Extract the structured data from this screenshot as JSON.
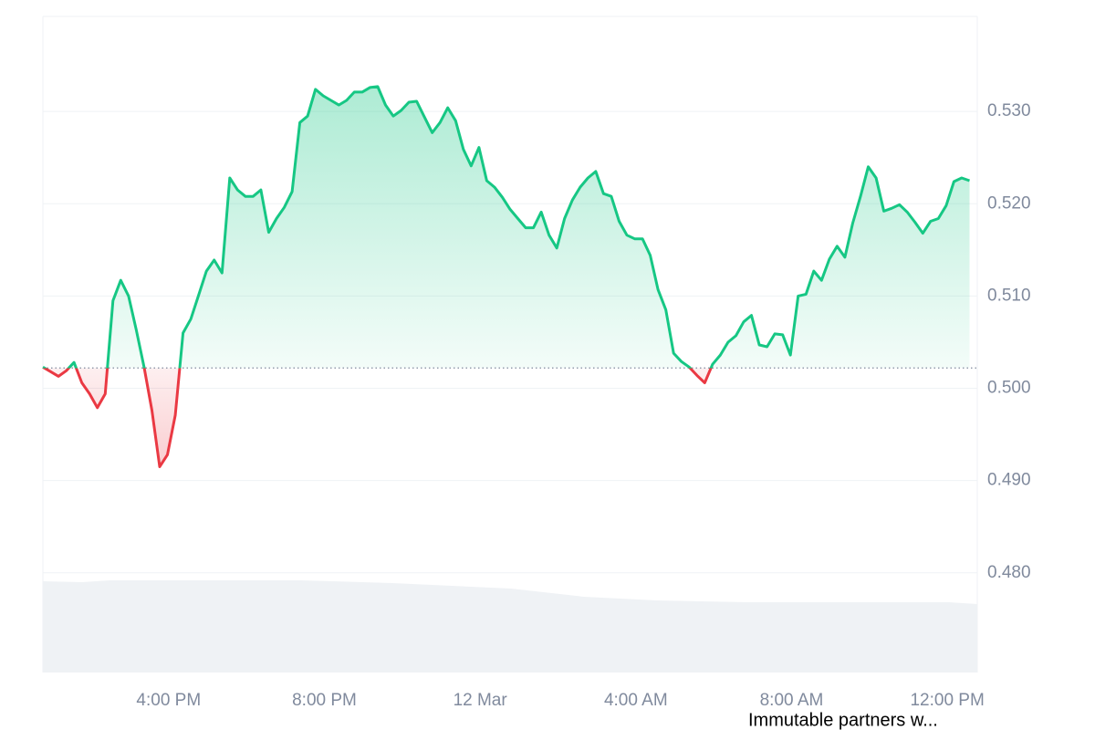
{
  "chart_data": {
    "type": "line",
    "baseline": 0.5022,
    "x": [
      0,
      0.2,
      0.4,
      0.6,
      0.8,
      1,
      1.2,
      1.4,
      1.6,
      1.8,
      2,
      2.2,
      2.4,
      2.6,
      2.8,
      3,
      3.2,
      3.4,
      3.6,
      3.8,
      4,
      4.2,
      4.4,
      4.6,
      4.8,
      5,
      5.2,
      5.4,
      5.6,
      5.8,
      6,
      6.2,
      6.4,
      6.6,
      6.8,
      7,
      7.2,
      7.4,
      7.6,
      7.8,
      8,
      8.2,
      8.4,
      8.6,
      8.8,
      9,
      9.2,
      9.4,
      9.6,
      9.8,
      10,
      10.2,
      10.4,
      10.6,
      10.8,
      11,
      11.2,
      11.4,
      11.6,
      11.8,
      12,
      12.2,
      12.4,
      12.6,
      12.8,
      13,
      13.2,
      13.4,
      13.6,
      13.8,
      14,
      14.2,
      14.4,
      14.6,
      14.8,
      15,
      15.2,
      15.4,
      15.6,
      15.8,
      16,
      16.2,
      16.4,
      16.6,
      16.8,
      17,
      17.2,
      17.4,
      17.6,
      17.8,
      18,
      18.2,
      18.4,
      18.6,
      18.8,
      19,
      19.2,
      19.4,
      19.6,
      19.8,
      20,
      20.2,
      20.4,
      20.6,
      20.8,
      21,
      21.2,
      21.4,
      21.6,
      21.8,
      22,
      22.2,
      22.4,
      22.6,
      22.8,
      23,
      23.2,
      23.4,
      23.6,
      23.8
    ],
    "series": [
      {
        "color": "#16c784",
        "down_color": "#ea3943",
        "values": [
          0.5023,
          0.5018,
          0.5013,
          0.5019,
          0.5028,
          0.5006,
          0.4994,
          0.4979,
          0.4994,
          0.5095,
          0.5117,
          0.51,
          0.5063,
          0.5023,
          0.4976,
          0.4915,
          0.4928,
          0.4971,
          0.506,
          0.5075,
          0.5101,
          0.5127,
          0.5139,
          0.5125,
          0.5228,
          0.5215,
          0.5208,
          0.5208,
          0.5215,
          0.5169,
          0.5184,
          0.5196,
          0.5213,
          0.5288,
          0.5295,
          0.5324,
          0.5317,
          0.5312,
          0.5307,
          0.5312,
          0.5321,
          0.5321,
          0.5326,
          0.5327,
          0.5307,
          0.5295,
          0.5301,
          0.531,
          0.5311,
          0.5294,
          0.5277,
          0.5288,
          0.5304,
          0.529,
          0.5259,
          0.5241,
          0.5261,
          0.5225,
          0.5218,
          0.5207,
          0.5194,
          0.5184,
          0.5174,
          0.5174,
          0.5191,
          0.5166,
          0.5152,
          0.5184,
          0.5204,
          0.5218,
          0.5228,
          0.5235,
          0.5211,
          0.5208,
          0.5181,
          0.5166,
          0.5162,
          0.5162,
          0.5144,
          0.5107,
          0.5085,
          0.5038,
          0.5029,
          0.5023,
          0.5014,
          0.5006,
          0.5026,
          0.5036,
          0.505,
          0.5057,
          0.5072,
          0.5079,
          0.5047,
          0.5045,
          0.5059,
          0.5058,
          0.5036,
          0.51,
          0.5102,
          0.5127,
          0.5117,
          0.514,
          0.5154,
          0.5142,
          0.5179,
          0.5208,
          0.524,
          0.5228,
          0.5192,
          0.5195,
          0.5199,
          0.5191,
          0.518,
          0.5168,
          0.5181,
          0.5184,
          0.5198,
          0.5224,
          0.5228,
          0.5225
        ]
      }
    ],
    "xlim": [
      0,
      24
    ],
    "xticks": [
      {
        "value": 3.23,
        "label": "4:00 PM"
      },
      {
        "value": 7.23,
        "label": "8:00 PM"
      },
      {
        "value": 11.23,
        "label": "12 Mar"
      },
      {
        "value": 15.23,
        "label": "4:00 AM"
      },
      {
        "value": 19.23,
        "label": "8:00 AM"
      },
      {
        "value": 23.23,
        "label": "12:00 PM"
      }
    ],
    "ylim": [
      0.4692,
      0.5403
    ],
    "yticks": [
      {
        "value": 0.48,
        "label": "0.480"
      },
      {
        "value": 0.49,
        "label": "0.490"
      },
      {
        "value": 0.5,
        "label": "0.500"
      },
      {
        "value": 0.51,
        "label": "0.510"
      },
      {
        "value": 0.52,
        "label": "0.520"
      },
      {
        "value": 0.53,
        "label": "0.530"
      }
    ],
    "grid": true,
    "annotation": "Immutable partners w..."
  }
}
